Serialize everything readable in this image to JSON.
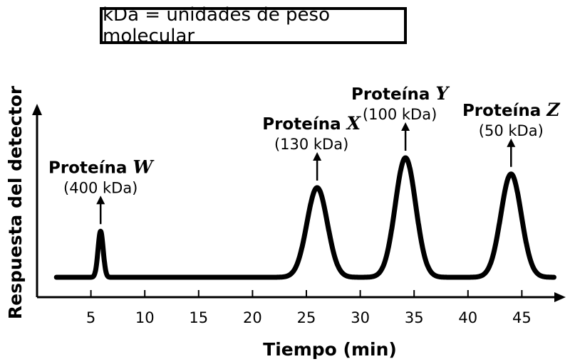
{
  "legend": {
    "text": "kDa = unidades de peso molecular"
  },
  "chart_data": {
    "type": "line",
    "xlabel": "Tiempo (min)",
    "ylabel": "Respuesta del detector",
    "xlim": [
      0,
      48
    ],
    "ylim": [
      0,
      1.05
    ],
    "xticks": [
      5,
      10,
      15,
      20,
      25,
      30,
      35,
      40,
      45
    ],
    "xticklabels": [
      "5",
      "10",
      "15",
      "20",
      "25",
      "30",
      "35",
      "40",
      "45"
    ],
    "grid": false,
    "series": [
      {
        "baseline": 0.0,
        "x_start": 1.8,
        "x_end": 48,
        "peaks": [
          {
            "label_name": "Proteína",
            "label_letter": "W",
            "label_mass": "(400 kDa)",
            "time": 5.9,
            "height": 0.37,
            "width": 0.24
          },
          {
            "label_name": "Proteína",
            "label_letter": "X",
            "label_mass": "(130 kDa)",
            "time": 26.0,
            "height": 0.72,
            "width": 0.95
          },
          {
            "label_name": "Proteína",
            "label_letter": "Y",
            "label_mass": "(100 kDa)",
            "time": 34.2,
            "height": 0.96,
            "width": 0.95
          },
          {
            "label_name": "Proteína",
            "label_letter": "Z",
            "label_mass": "(50 kDa)",
            "time": 44.0,
            "height": 0.83,
            "width": 0.95
          }
        ]
      }
    ]
  }
}
